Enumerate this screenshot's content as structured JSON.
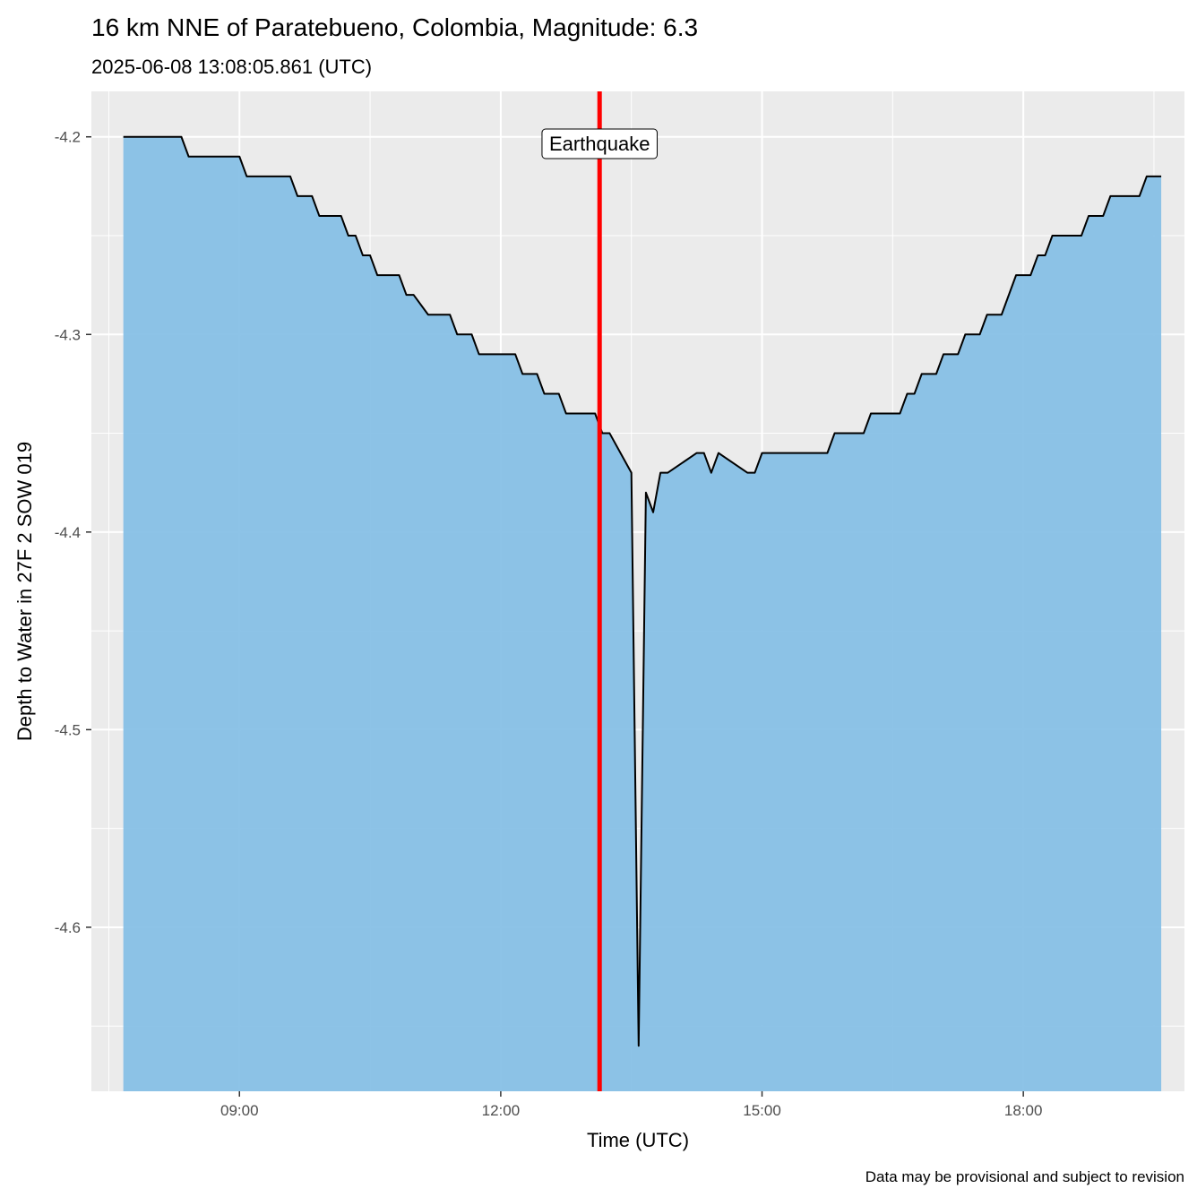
{
  "chart_data": {
    "type": "area",
    "title": "16 km NNE of Paratebueno, Colombia, Magnitude: 6.3",
    "subtitle": "2025-06-08 13:08:05.861 (UTC)",
    "xlabel": "Time (UTC)",
    "ylabel": "Depth to Water in 27F 2 SOW 019",
    "caption": "Data may be provisional and subject to revision",
    "x_unit": "hours (UTC)",
    "xlim": [
      7.3,
      19.85
    ],
    "ylim": [
      -4.683,
      -4.177
    ],
    "x_ticks": [
      {
        "value": 9,
        "label": "09:00"
      },
      {
        "value": 12,
        "label": "12:00"
      },
      {
        "value": 15,
        "label": "15:00"
      },
      {
        "value": 18,
        "label": "18:00"
      }
    ],
    "y_ticks": [
      {
        "value": -4.2,
        "label": "-4.2"
      },
      {
        "value": -4.3,
        "label": "-4.3"
      },
      {
        "value": -4.4,
        "label": "-4.4"
      },
      {
        "value": -4.5,
        "label": "-4.5"
      },
      {
        "value": -4.6,
        "label": "-4.6"
      }
    ],
    "grid": true,
    "event": {
      "x": 13.1349,
      "label": "Earthquake",
      "color": "#ff0000"
    },
    "area_color": "#87c0e6",
    "line_color": "#000000",
    "series": [
      {
        "name": "Depth to Water",
        "x": [
          7.6667,
          8.3333,
          8.4167,
          9.0,
          9.0833,
          9.5833,
          9.6667,
          9.8333,
          9.9167,
          10.1667,
          10.25,
          10.3333,
          10.4167,
          10.5,
          10.5833,
          10.8333,
          10.9167,
          11.0,
          11.1667,
          11.4167,
          11.5,
          11.6667,
          11.75,
          12.1667,
          12.25,
          12.4167,
          12.5,
          12.6667,
          12.75,
          13.0833,
          13.1667,
          13.25,
          13.5,
          13.5833,
          13.6667,
          13.75,
          13.8333,
          13.9167,
          14.25,
          14.3333,
          14.4167,
          14.5,
          14.8333,
          14.9167,
          15.0,
          15.75,
          15.8333,
          16.1667,
          16.25,
          16.5833,
          16.6667,
          16.75,
          16.8333,
          17.0,
          17.0833,
          17.25,
          17.3333,
          17.5,
          17.5833,
          17.75,
          17.9167,
          18.0833,
          18.1667,
          18.25,
          18.3333,
          18.6667,
          18.75,
          18.9167,
          19.0,
          19.0833,
          19.3333,
          19.4167,
          19.5833
        ],
        "values": [
          -4.2,
          -4.2,
          -4.21,
          -4.21,
          -4.22,
          -4.22,
          -4.23,
          -4.23,
          -4.24,
          -4.24,
          -4.25,
          -4.25,
          -4.26,
          -4.26,
          -4.27,
          -4.27,
          -4.28,
          -4.28,
          -4.29,
          -4.29,
          -4.3,
          -4.3,
          -4.31,
          -4.31,
          -4.32,
          -4.32,
          -4.33,
          -4.33,
          -4.34,
          -4.34,
          -4.35,
          -4.35,
          -4.37,
          -4.66,
          -4.38,
          -4.39,
          -4.37,
          -4.37,
          -4.36,
          -4.36,
          -4.37,
          -4.36,
          -4.37,
          -4.37,
          -4.36,
          -4.36,
          -4.35,
          -4.35,
          -4.34,
          -4.34,
          -4.33,
          -4.33,
          -4.32,
          -4.32,
          -4.31,
          -4.31,
          -4.3,
          -4.3,
          -4.29,
          -4.29,
          -4.27,
          -4.27,
          -4.26,
          -4.26,
          -4.25,
          -4.25,
          -4.24,
          -4.24,
          -4.23,
          -4.23,
          -4.23,
          -4.22,
          -4.22
        ]
      }
    ]
  }
}
